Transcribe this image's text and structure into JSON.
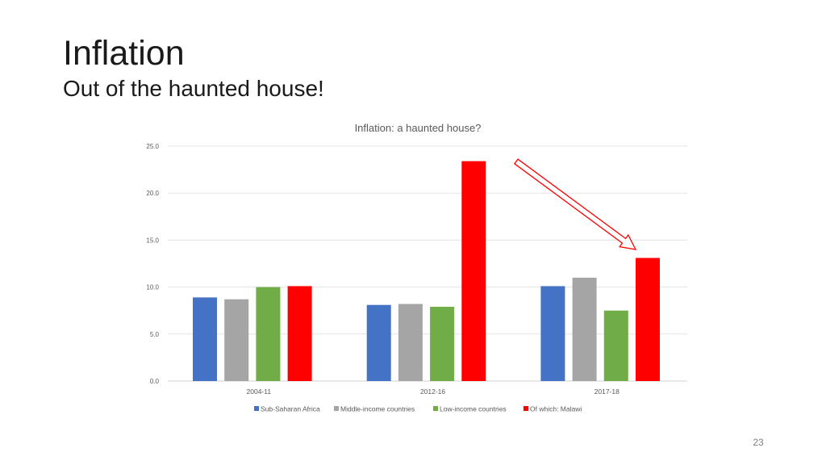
{
  "slide": {
    "title": "Inflation",
    "subtitle": "Out of the haunted house!",
    "page_number": "23"
  },
  "chart_data": {
    "type": "bar",
    "title": "Inflation: a haunted house?",
    "categories": [
      "2004-11",
      "2012-16",
      "2017-18"
    ],
    "series": [
      {
        "name": "Sub-Saharan Africa",
        "color": "#4472C4",
        "values": [
          8.9,
          8.1,
          10.1
        ]
      },
      {
        "name": "Middle-income countries",
        "color": "#A5A5A5",
        "values": [
          8.7,
          8.2,
          11.0
        ]
      },
      {
        "name": "Low-income countries",
        "color": "#70AD47",
        "values": [
          10.0,
          7.9,
          7.5
        ]
      },
      {
        "name": "Of which: Malawi",
        "color": "#FF0000",
        "values": [
          10.1,
          23.4,
          13.1
        ]
      }
    ],
    "yticks": [
      "0.0",
      "5.0",
      "10.0",
      "15.0",
      "20.0",
      "25.0"
    ],
    "ylim": [
      0,
      25
    ],
    "grid": true,
    "legend": "bottom",
    "annotation": {
      "type": "arrow",
      "color": "#FF0000",
      "direction": "down-right"
    }
  }
}
